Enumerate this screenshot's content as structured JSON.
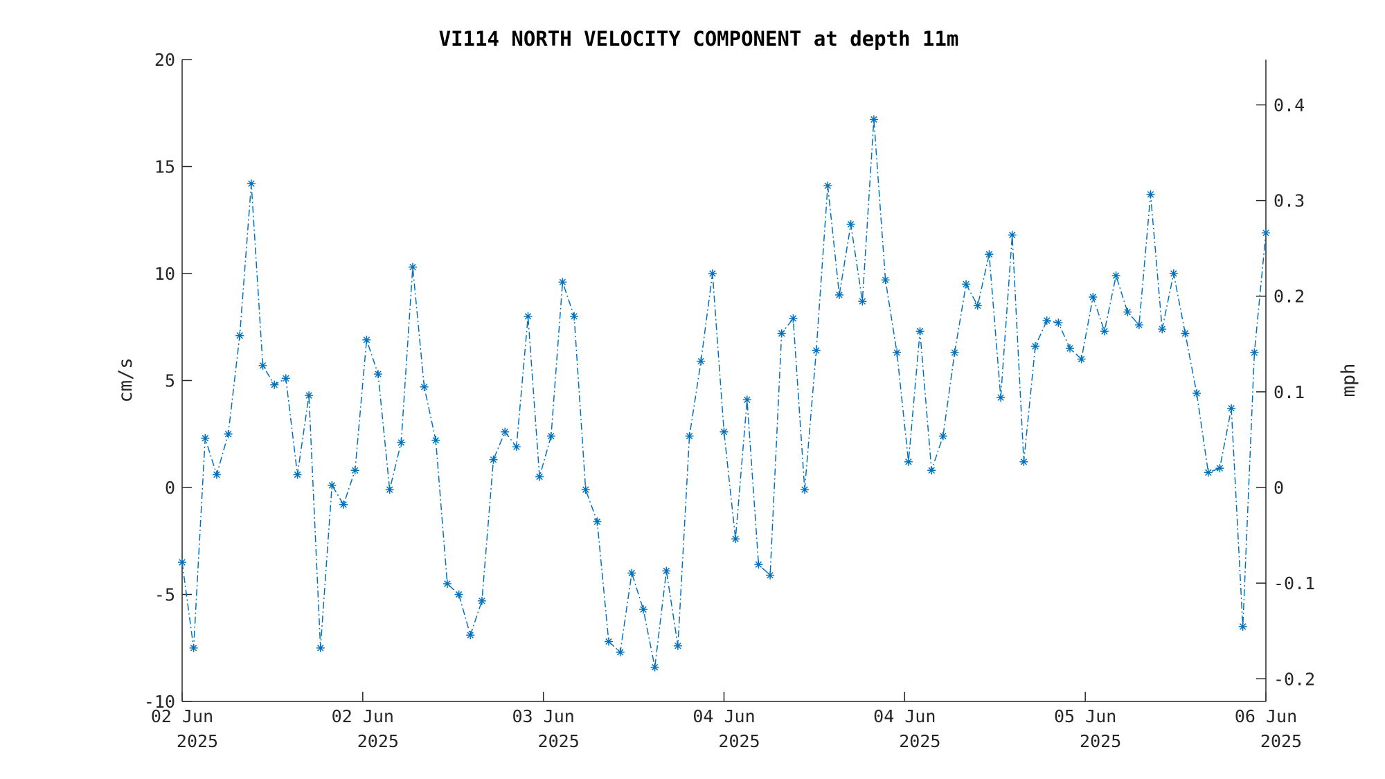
{
  "chart_data": {
    "type": "line",
    "title": "VI114 NORTH VELOCITY COMPONENT at depth 11m",
    "ylabel": "cm/s",
    "y2label": "mph",
    "ylim": [
      -10,
      20
    ],
    "y2lim": [
      -0.2237,
      0.4474
    ],
    "yticks": [
      "-10",
      "-5",
      "0",
      "5",
      "10",
      "15",
      "20"
    ],
    "y2ticks": [
      "-0.2",
      "-0.1",
      "0",
      "0.1",
      "0.2",
      "0.3",
      "0.4"
    ],
    "xticks": [
      {
        "day": "02 Jun",
        "year": "2025"
      },
      {
        "day": "02 Jun",
        "year": "2025"
      },
      {
        "day": "03 Jun",
        "year": "2025"
      },
      {
        "day": "04 Jun",
        "year": "2025"
      },
      {
        "day": "04 Jun",
        "year": "2025"
      },
      {
        "day": "05 Jun",
        "year": "2025"
      },
      {
        "day": "06 Jun",
        "year": "2025"
      }
    ],
    "grid": false,
    "marker": "asterisk",
    "line_style": "dash-dot",
    "series_color": "#0072BD",
    "series": [
      {
        "values": [
          -3.5,
          -7.5,
          2.3,
          0.6,
          2.5,
          7.1,
          14.2,
          5.7,
          4.8,
          5.1,
          0.6,
          4.3,
          -7.5,
          0.1,
          -0.8,
          0.8,
          6.9,
          5.3,
          -0.1,
          2.1,
          10.3,
          4.7,
          2.2,
          -4.5,
          -5.0,
          -6.9,
          -5.3,
          1.3,
          2.6,
          1.9,
          8.0,
          0.5,
          2.4,
          9.6,
          8.0,
          -0.1,
          -1.6,
          -7.2,
          -7.7,
          -4.0,
          -5.7,
          -8.4,
          -3.9,
          -7.4,
          2.4,
          5.9,
          10.0,
          2.6,
          -2.4,
          4.1,
          -3.6,
          -4.1,
          7.2,
          7.9,
          -0.1,
          6.4,
          14.1,
          9.0,
          12.3,
          8.7,
          17.2,
          9.7,
          6.3,
          1.2,
          7.3,
          0.8,
          2.4,
          6.3,
          9.5,
          8.5,
          10.9,
          4.2,
          11.8,
          1.2,
          6.6,
          7.8,
          7.7,
          6.5,
          6.0,
          8.9,
          7.3,
          9.9,
          8.2,
          7.6,
          13.7,
          7.4,
          10.0,
          7.2,
          4.4,
          0.7,
          0.9,
          3.7,
          -6.5,
          6.3,
          11.9
        ]
      }
    ]
  }
}
